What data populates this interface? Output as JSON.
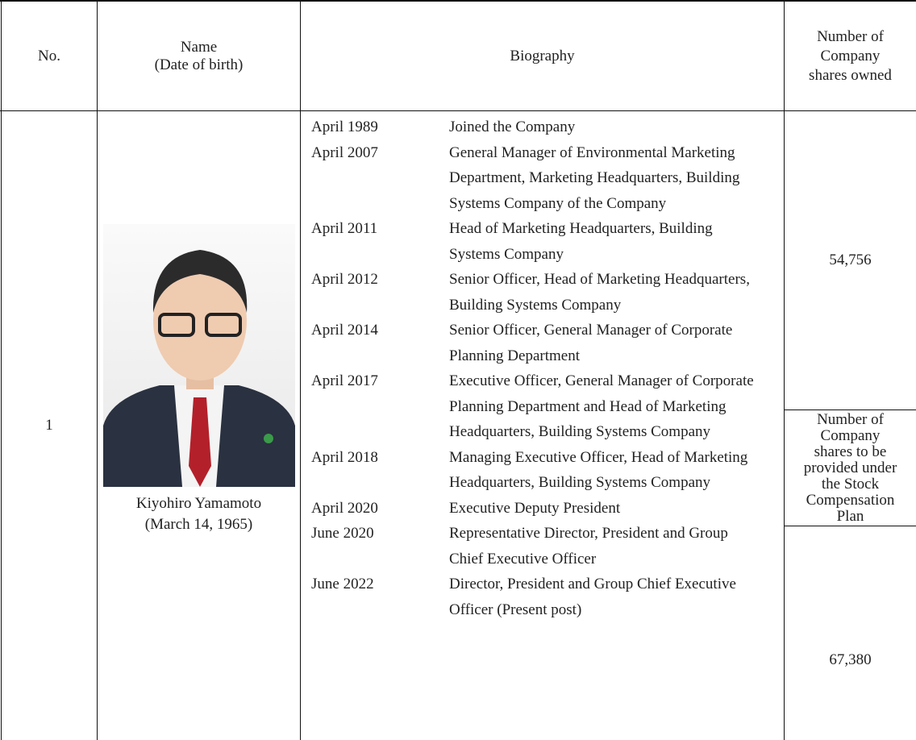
{
  "header": {
    "no": "No.",
    "name": [
      "Name",
      "(Date of birth)"
    ],
    "biography": "Biography",
    "shares_owned": [
      "Number of",
      "Company",
      "shares owned"
    ]
  },
  "row": {
    "no": "1",
    "name": "Kiyohiro Yamamoto",
    "date_of_birth": "(March 14, 1965)",
    "biography": [
      {
        "date": "April 1989",
        "text": "Joined the Company"
      },
      {
        "date": "April 2007",
        "text": "General Manager of Environmental Marketing Department, Marketing Headquarters, Building Systems Company of the Company"
      },
      {
        "date": "April 2011",
        "text": "Head of Marketing Headquarters, Building Systems Company"
      },
      {
        "date": "April 2012",
        "text": "Senior Officer, Head of Marketing Headquarters, Building Systems Company"
      },
      {
        "date": "April 2014",
        "text": "Senior Officer, General Manager of Corporate Planning Department"
      },
      {
        "date": "April 2017",
        "text": "Executive Officer, General Manager of Corporate Planning Department and Head of Marketing Headquarters, Building Systems Company"
      },
      {
        "date": "April 2018",
        "text": "Managing Executive Officer, Head of Marketing Headquarters, Building Systems Company"
      },
      {
        "date": "April 2020",
        "text": "Executive Deputy President"
      },
      {
        "date": "June 2020",
        "text": "Representative Director, President and Group Chief Executive Officer"
      },
      {
        "date": "June 2022",
        "text": "Director, President and Group Chief Executive Officer (Present post)"
      }
    ],
    "shares_owned": "54,756",
    "stock_plan_label": [
      "Number of",
      "Company",
      "shares to be",
      "provided under",
      "the Stock",
      "Compensation",
      "Plan"
    ],
    "stock_plan_shares": "67,380"
  }
}
